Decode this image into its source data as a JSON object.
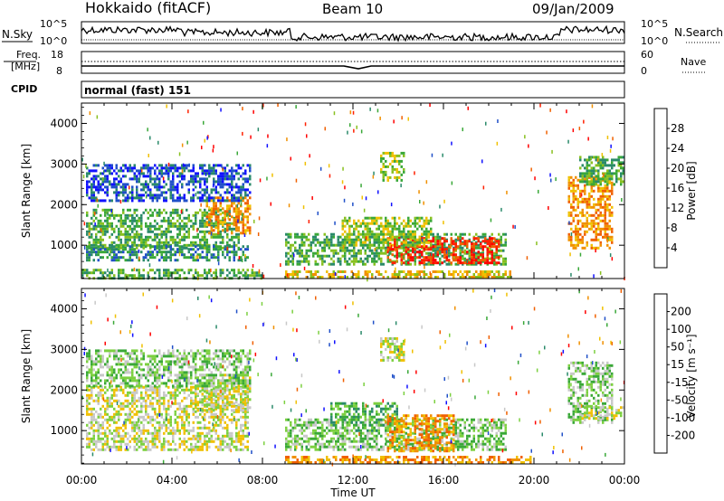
{
  "header": {
    "title": "Hokkaido (fitACF)",
    "beam": "Beam 10",
    "date": "09/Jan/2009"
  },
  "nsky_panel": {
    "left_label": "N.Sky",
    "right_label": "N.Search",
    "left_ticks": [
      "10^5",
      "10^0"
    ],
    "right_ticks": [
      "10^5",
      "10^0"
    ]
  },
  "freq_panel": {
    "left_label_line1": "Freq.",
    "left_label_line2": "[MHz]",
    "right_label": "Nave",
    "left_ticks": [
      "18",
      "8"
    ],
    "right_ticks": [
      "60",
      "0"
    ]
  },
  "cpid": {
    "label": "CPID",
    "text": "normal (fast) 151"
  },
  "x_axis": {
    "label": "Time UT",
    "ticks": [
      "00:00",
      "04:00",
      "08:00",
      "12:00",
      "16:00",
      "20:00",
      "00:00"
    ]
  },
  "chart_data": [
    {
      "type": "heatmap",
      "name": "power",
      "ylabel": "Slant Range [km]",
      "y_ticks": [
        1000,
        2000,
        3000,
        4000
      ],
      "ylim": [
        180,
        4500
      ],
      "xlim_hours": [
        0,
        24
      ],
      "colorbar_label": "Power [dB]",
      "colorbar_ticks": [
        "4",
        "8",
        "12",
        "16",
        "20",
        "24",
        "28"
      ],
      "colorbar_colors": [
        "#1010ff",
        "#2050c8",
        "#2a8a6a",
        "#3aa838",
        "#88c020",
        "#f0c000",
        "#f09000",
        "#f06000",
        "#ff2000",
        "#ff0000"
      ],
      "regions": [
        {
          "t0": 0.2,
          "t1": 7.0,
          "r0": 900,
          "r1": 1900,
          "level": 3
        },
        {
          "t0": 0.2,
          "t1": 7.4,
          "r0": 600,
          "r1": 1000,
          "level": 2
        },
        {
          "t0": 5.5,
          "t1": 7.5,
          "r0": 1300,
          "r1": 2200,
          "level": 6
        },
        {
          "t0": 0.2,
          "t1": 7.5,
          "r0": 2100,
          "r1": 3000,
          "level": 1
        },
        {
          "t0": 0.0,
          "t1": 8.0,
          "r0": 200,
          "r1": 420,
          "level": 3
        },
        {
          "t0": 9.0,
          "t1": 19.0,
          "r0": 200,
          "r1": 380,
          "level": 5
        },
        {
          "t0": 9.0,
          "t1": 18.8,
          "r0": 500,
          "r1": 1300,
          "level": 3
        },
        {
          "t0": 13.5,
          "t1": 18.5,
          "r0": 550,
          "r1": 1200,
          "level": 8
        },
        {
          "t0": 11.5,
          "t1": 15.5,
          "r0": 1000,
          "r1": 1700,
          "level": 4
        },
        {
          "t0": 13.2,
          "t1": 14.2,
          "r0": 2600,
          "r1": 3300,
          "level": 4
        },
        {
          "t0": 21.5,
          "t1": 23.5,
          "r0": 900,
          "r1": 2700,
          "level": 6
        },
        {
          "t0": 22.0,
          "t1": 24.0,
          "r0": 2500,
          "r1": 3200,
          "level": 3
        }
      ]
    },
    {
      "type": "heatmap",
      "name": "velocity",
      "ylabel": "Slant Range [km]",
      "y_ticks": [
        1000,
        2000,
        3000,
        4000
      ],
      "ylim": [
        180,
        4500
      ],
      "xlim_hours": [
        0,
        24
      ],
      "colorbar_label": "Velocity [m s⁻¹]",
      "colorbar_ticks": [
        "200",
        "100",
        "50",
        "15",
        "-15",
        "-50",
        "-100",
        "-200"
      ],
      "colorbar_colors": [
        "#1010ff",
        "#2050c8",
        "#2a8a6a",
        "#3aa838",
        "#7cd040",
        "#c8c8c8",
        "#f0c000",
        "#f09000",
        "#f06000",
        "#ff0000"
      ],
      "regions": [
        {
          "t0": 0.2,
          "t1": 7.4,
          "r0": 500,
          "r1": 2100,
          "level": 5
        },
        {
          "t0": 5.0,
          "t1": 7.5,
          "r0": 1500,
          "r1": 2400,
          "level": 5
        },
        {
          "t0": 0.2,
          "t1": 7.5,
          "r0": 2100,
          "r1": 3000,
          "level": 4
        },
        {
          "t0": 9.0,
          "t1": 18.8,
          "r0": 500,
          "r1": 1300,
          "level": 4
        },
        {
          "t0": 11.0,
          "t1": 14.0,
          "r0": 1000,
          "r1": 1700,
          "level": 3
        },
        {
          "t0": 13.5,
          "t1": 16.5,
          "r0": 500,
          "r1": 1400,
          "level": 7
        },
        {
          "t0": 13.2,
          "t1": 14.2,
          "r0": 2700,
          "r1": 3300,
          "level": 5
        },
        {
          "t0": 9.0,
          "t1": 20.0,
          "r0": 200,
          "r1": 380,
          "level": 7
        },
        {
          "t0": 21.5,
          "t1": 23.5,
          "r0": 1200,
          "r1": 2700,
          "level": 4
        },
        {
          "t0": 22.0,
          "t1": 24.0,
          "r0": 1300,
          "r1": 1600,
          "level": 5
        }
      ]
    }
  ]
}
